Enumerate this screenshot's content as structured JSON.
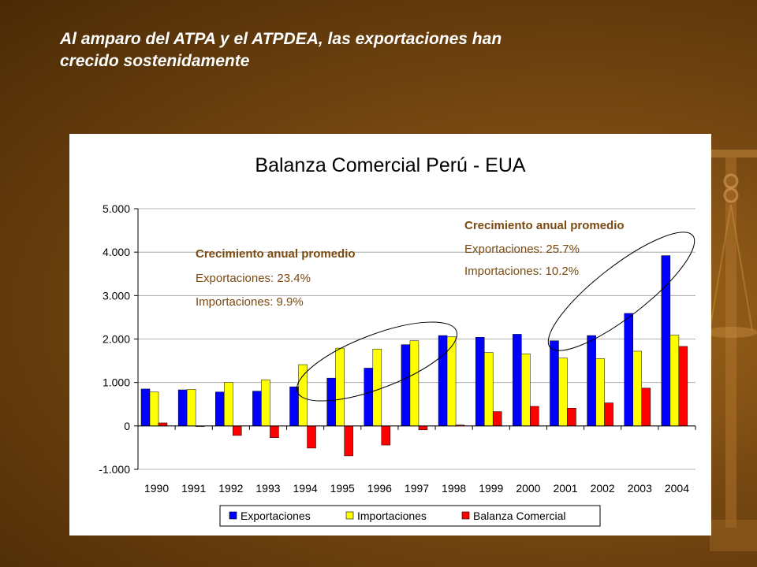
{
  "slide": {
    "title_line1": "Al amparo del ATPA y el ATPDEA, las exportaciones han",
    "title_line2": "crecido sostenidamente"
  },
  "colors": {
    "background": "#7a4a12",
    "title_text": "#ffffff",
    "annotation_heading": "#7a4a12",
    "annotation_text": "#7a4a12",
    "exportaciones": "#0000ff",
    "importaciones": "#ffff00",
    "balanza": "#ff0000",
    "ellipse": "#000000"
  },
  "chart_data": {
    "type": "bar",
    "title": "Balanza Comercial Perú - EUA",
    "xlabel": "",
    "ylabel": "",
    "ylim": [
      -1000,
      5000
    ],
    "yticks": [
      -1000,
      0,
      1000,
      2000,
      3000,
      4000,
      5000
    ],
    "ytick_labels": [
      "-1.000",
      "0",
      "1.000",
      "2.000",
      "3.000",
      "4.000",
      "5.000"
    ],
    "grid": true,
    "legend_position": "bottom",
    "categories": [
      "1990",
      "1991",
      "1992",
      "1993",
      "1994",
      "1995",
      "1996",
      "1997",
      "1998",
      "1999",
      "2000",
      "2001",
      "2002",
      "2003",
      "2004"
    ],
    "series": [
      {
        "name": "Exportaciones",
        "values": [
          850,
          830,
          780,
          800,
          900,
          1100,
          1330,
          1870,
          2080,
          2040,
          2110,
          1960,
          2080,
          2590,
          3920
        ]
      },
      {
        "name": "Importaciones",
        "values": [
          780,
          840,
          1000,
          1060,
          1410,
          1790,
          1770,
          1960,
          2050,
          1690,
          1660,
          1560,
          1550,
          1720,
          2090
        ]
      },
      {
        "name": "Balanza Comercial",
        "values": [
          70,
          -10,
          -220,
          -270,
          -510,
          -690,
          -440,
          -90,
          20,
          330,
          450,
          410,
          530,
          870,
          1830
        ]
      }
    ],
    "annotations": [
      {
        "heading": "Crecimiento anual promedio",
        "lines": [
          "Exportaciones: 23.4%",
          "Importaciones: 9.9%"
        ]
      },
      {
        "heading": "Crecimiento anual promedio",
        "lines": [
          "Exportaciones: 25.7%",
          "Importaciones: 10.2%"
        ]
      }
    ]
  }
}
